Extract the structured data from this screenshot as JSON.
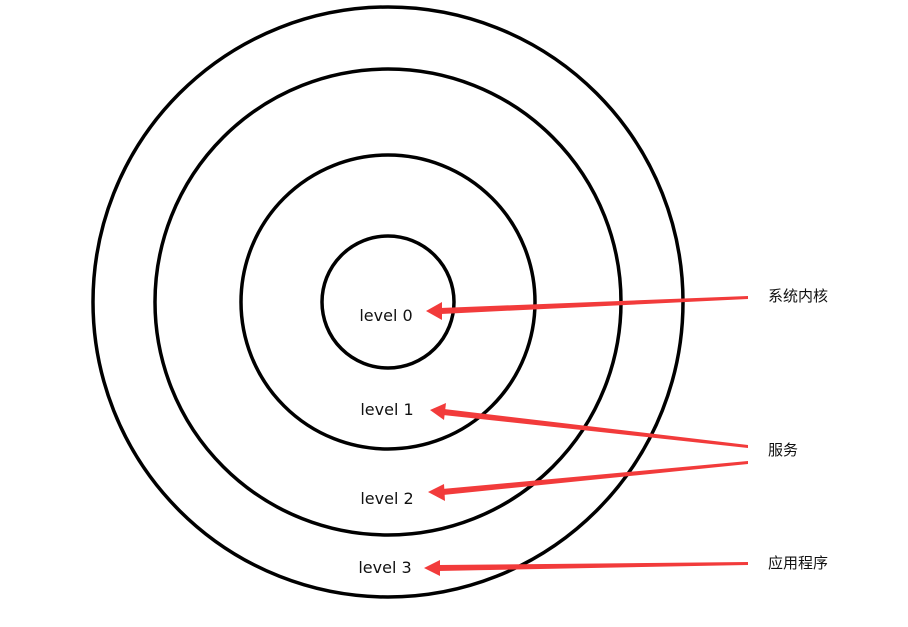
{
  "levels": [
    {
      "label": "level 0"
    },
    {
      "label": "level 1"
    },
    {
      "label": "level 2"
    },
    {
      "label": "level 3"
    }
  ],
  "annotations": {
    "kernel": "系统内核",
    "services": "服务",
    "applications": "应用程序"
  },
  "colors": {
    "ring": "#000000",
    "arrow": "#f23b3b",
    "text": "#111111"
  }
}
